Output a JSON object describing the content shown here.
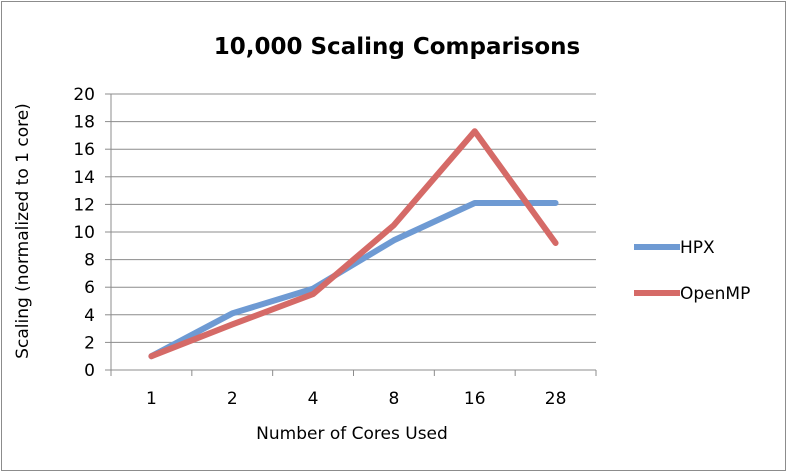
{
  "chart_data": {
    "type": "line",
    "title": "10,000 Scaling Comparisons",
    "xlabel": "Number of Cores Used",
    "ylabel": "Scaling (normalized to 1 core)",
    "categories": [
      "1",
      "2",
      "4",
      "8",
      "16",
      "28"
    ],
    "ylim": [
      0,
      20
    ],
    "yticks": [
      0,
      2,
      4,
      6,
      8,
      10,
      12,
      14,
      16,
      18,
      20
    ],
    "grid": true,
    "legend_position": "right",
    "series": [
      {
        "name": "HPX",
        "color": "#6e9ad3",
        "values": [
          1,
          4.1,
          5.9,
          9.4,
          12.1,
          12.1
        ]
      },
      {
        "name": "OpenMP",
        "color": "#d56a67",
        "values": [
          1,
          3.3,
          5.5,
          10.5,
          17.3,
          9.2
        ]
      }
    ]
  }
}
